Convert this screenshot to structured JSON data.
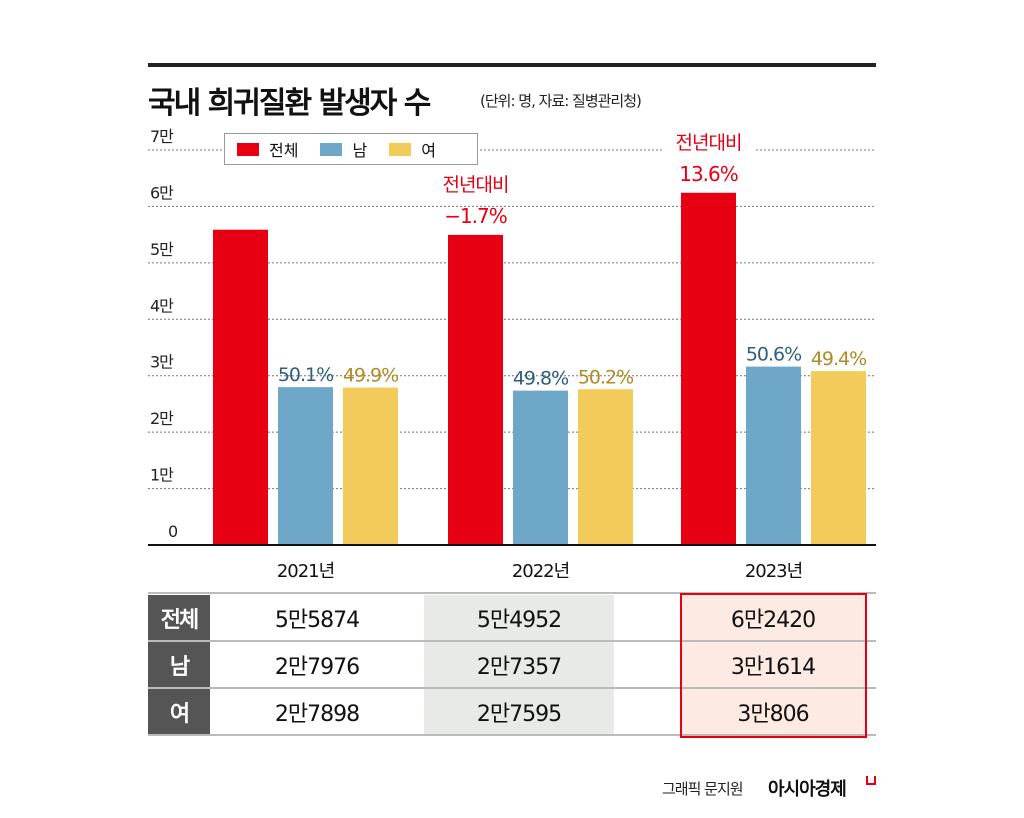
{
  "header": {
    "title": "국내 희귀질환 발생자 수",
    "subtitle": "(단위: 명, 자료: 질병관리청)"
  },
  "colors": {
    "total": "#e60012",
    "male": "#6fa7c9",
    "female": "#f3cb5a",
    "male_label": "#2f5f7a",
    "female_label": "#b28a24",
    "annotation": "#e60012"
  },
  "chart_data": {
    "type": "bar",
    "title": "국내 희귀질환 발생자 수",
    "subtitle": "(단위: 명, 자료: 질병관리청)",
    "xlabel": "",
    "ylabel": "",
    "categories": [
      "2021년",
      "2022년",
      "2023년"
    ],
    "ylim": [
      0,
      70000
    ],
    "yticks": [
      {
        "value": 0,
        "label": "0"
      },
      {
        "value": 10000,
        "label": "1만"
      },
      {
        "value": 20000,
        "label": "2만"
      },
      {
        "value": 30000,
        "label": "3만"
      },
      {
        "value": 40000,
        "label": "4만"
      },
      {
        "value": 50000,
        "label": "5만"
      },
      {
        "value": 60000,
        "label": "6만"
      },
      {
        "value": 70000,
        "label": "7만"
      }
    ],
    "grid": true,
    "legend": {
      "placement": "top-left",
      "entries": [
        "전체",
        "남",
        "여"
      ]
    },
    "series": [
      {
        "name": "전체",
        "key": "total",
        "values": [
          55874,
          54952,
          62420
        ],
        "labels": [
          "",
          "",
          ""
        ]
      },
      {
        "name": "남",
        "key": "male",
        "values": [
          27976,
          27357,
          31614
        ],
        "labels": [
          "50.1%",
          "49.8%",
          "50.6%"
        ]
      },
      {
        "name": "여",
        "key": "female",
        "values": [
          27898,
          27595,
          30806
        ],
        "labels": [
          "49.9%",
          "50.2%",
          "49.4%"
        ]
      }
    ],
    "annotations": [
      {
        "category": "2022년",
        "line1": "전년대비",
        "line2": "−1.7%"
      },
      {
        "category": "2023년",
        "line1": "전년대비",
        "line2": "13.6%"
      }
    ]
  },
  "table": {
    "rows": [
      {
        "head": "전체",
        "cells": [
          "5만5874",
          "5만4952",
          "6만2420"
        ]
      },
      {
        "head": "남",
        "cells": [
          "2만7976",
          "2만7357",
          "3만1614"
        ]
      },
      {
        "head": "여",
        "cells": [
          "2만7898",
          "2만7595",
          "3만806"
        ]
      }
    ]
  },
  "footer": {
    "credit": "그래픽 문지원",
    "brand": "아시아경제"
  }
}
